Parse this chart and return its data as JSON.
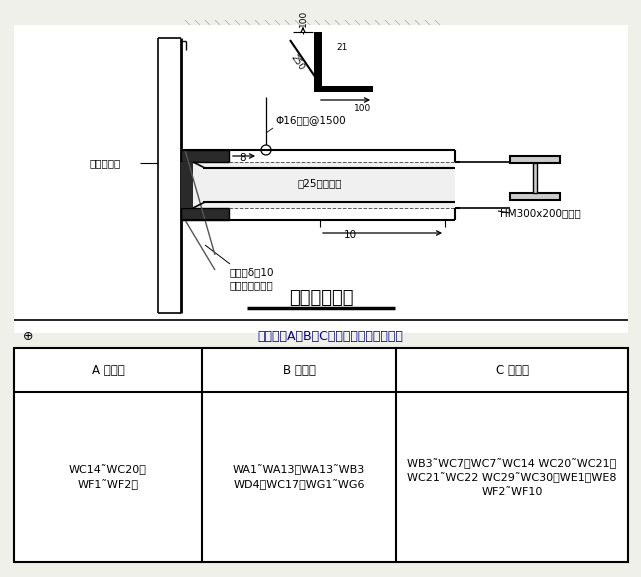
{
  "title": "腰梁连接大样",
  "section_title": "（四）、A、B、C三类支护方法使用范围",
  "table_headers": [
    "A 型支护",
    "B 型支护",
    "C 型支护"
  ],
  "table_row": [
    "WC14˜WC20、\nWF1˜WF2、",
    "WA1˜WA13、WA13˜WB3\nWD4～WC17、WG1˜WG6",
    "WB3˜WC7、WC7˜WC14 WC20˜WC21、\nWC21˜WC22 WC29˜WC30、WE1～WE8\nWF2˜WF10"
  ],
  "bg_color": "#f0f0eb",
  "lc": "#000000",
  "label_lassen": "拉森鉢板桩",
  "label_phi16": "Φ16吸筋@1500",
  "label_8": "8",
  "label_10": "10",
  "label_HM": "HM300x200制腰梁",
  "label_gong25": "剙25型鉢支撑",
  "label_jiajin": "加劲肋δ＝10\n（仅支撑位置）",
  "label_100top": "100",
  "label_100right": "100",
  "label_250": "250",
  "label_21": "21"
}
